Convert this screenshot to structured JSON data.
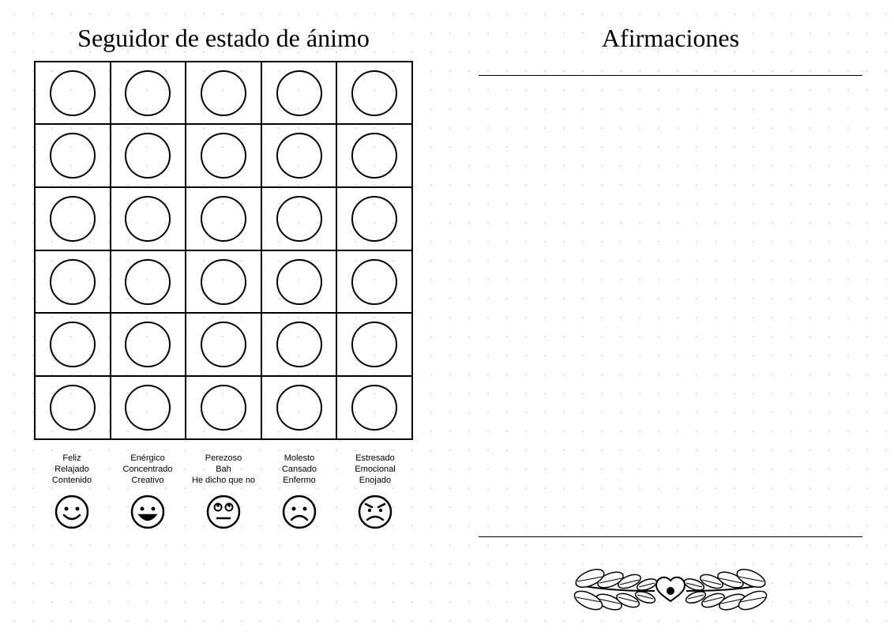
{
  "tracker": {
    "title": "Seguidor de estado de ánimo",
    "rows": 6,
    "cols": 5,
    "circle_stroke": "#000000",
    "grid_stroke": "#000000",
    "legend": [
      {
        "labels": [
          "Feliz",
          "Relajado",
          "Contenido"
        ],
        "face": "happy"
      },
      {
        "labels": [
          "Enérgico",
          "Concentrado",
          "Creativo"
        ],
        "face": "excited"
      },
      {
        "labels": [
          "Perezoso",
          "Bah",
          "He dicho que no"
        ],
        "face": "meh"
      },
      {
        "labels": [
          "Molesto",
          "Cansado",
          "Enfermo"
        ],
        "face": "sad"
      },
      {
        "labels": [
          "Estresado",
          "Emocional",
          "Enojado"
        ],
        "face": "angry"
      }
    ]
  },
  "affirmations": {
    "title": "Afirmaciones",
    "line_count": 2
  },
  "colors": {
    "text": "#000000",
    "background": "#ffffff",
    "dot": "#d8d8d8"
  }
}
